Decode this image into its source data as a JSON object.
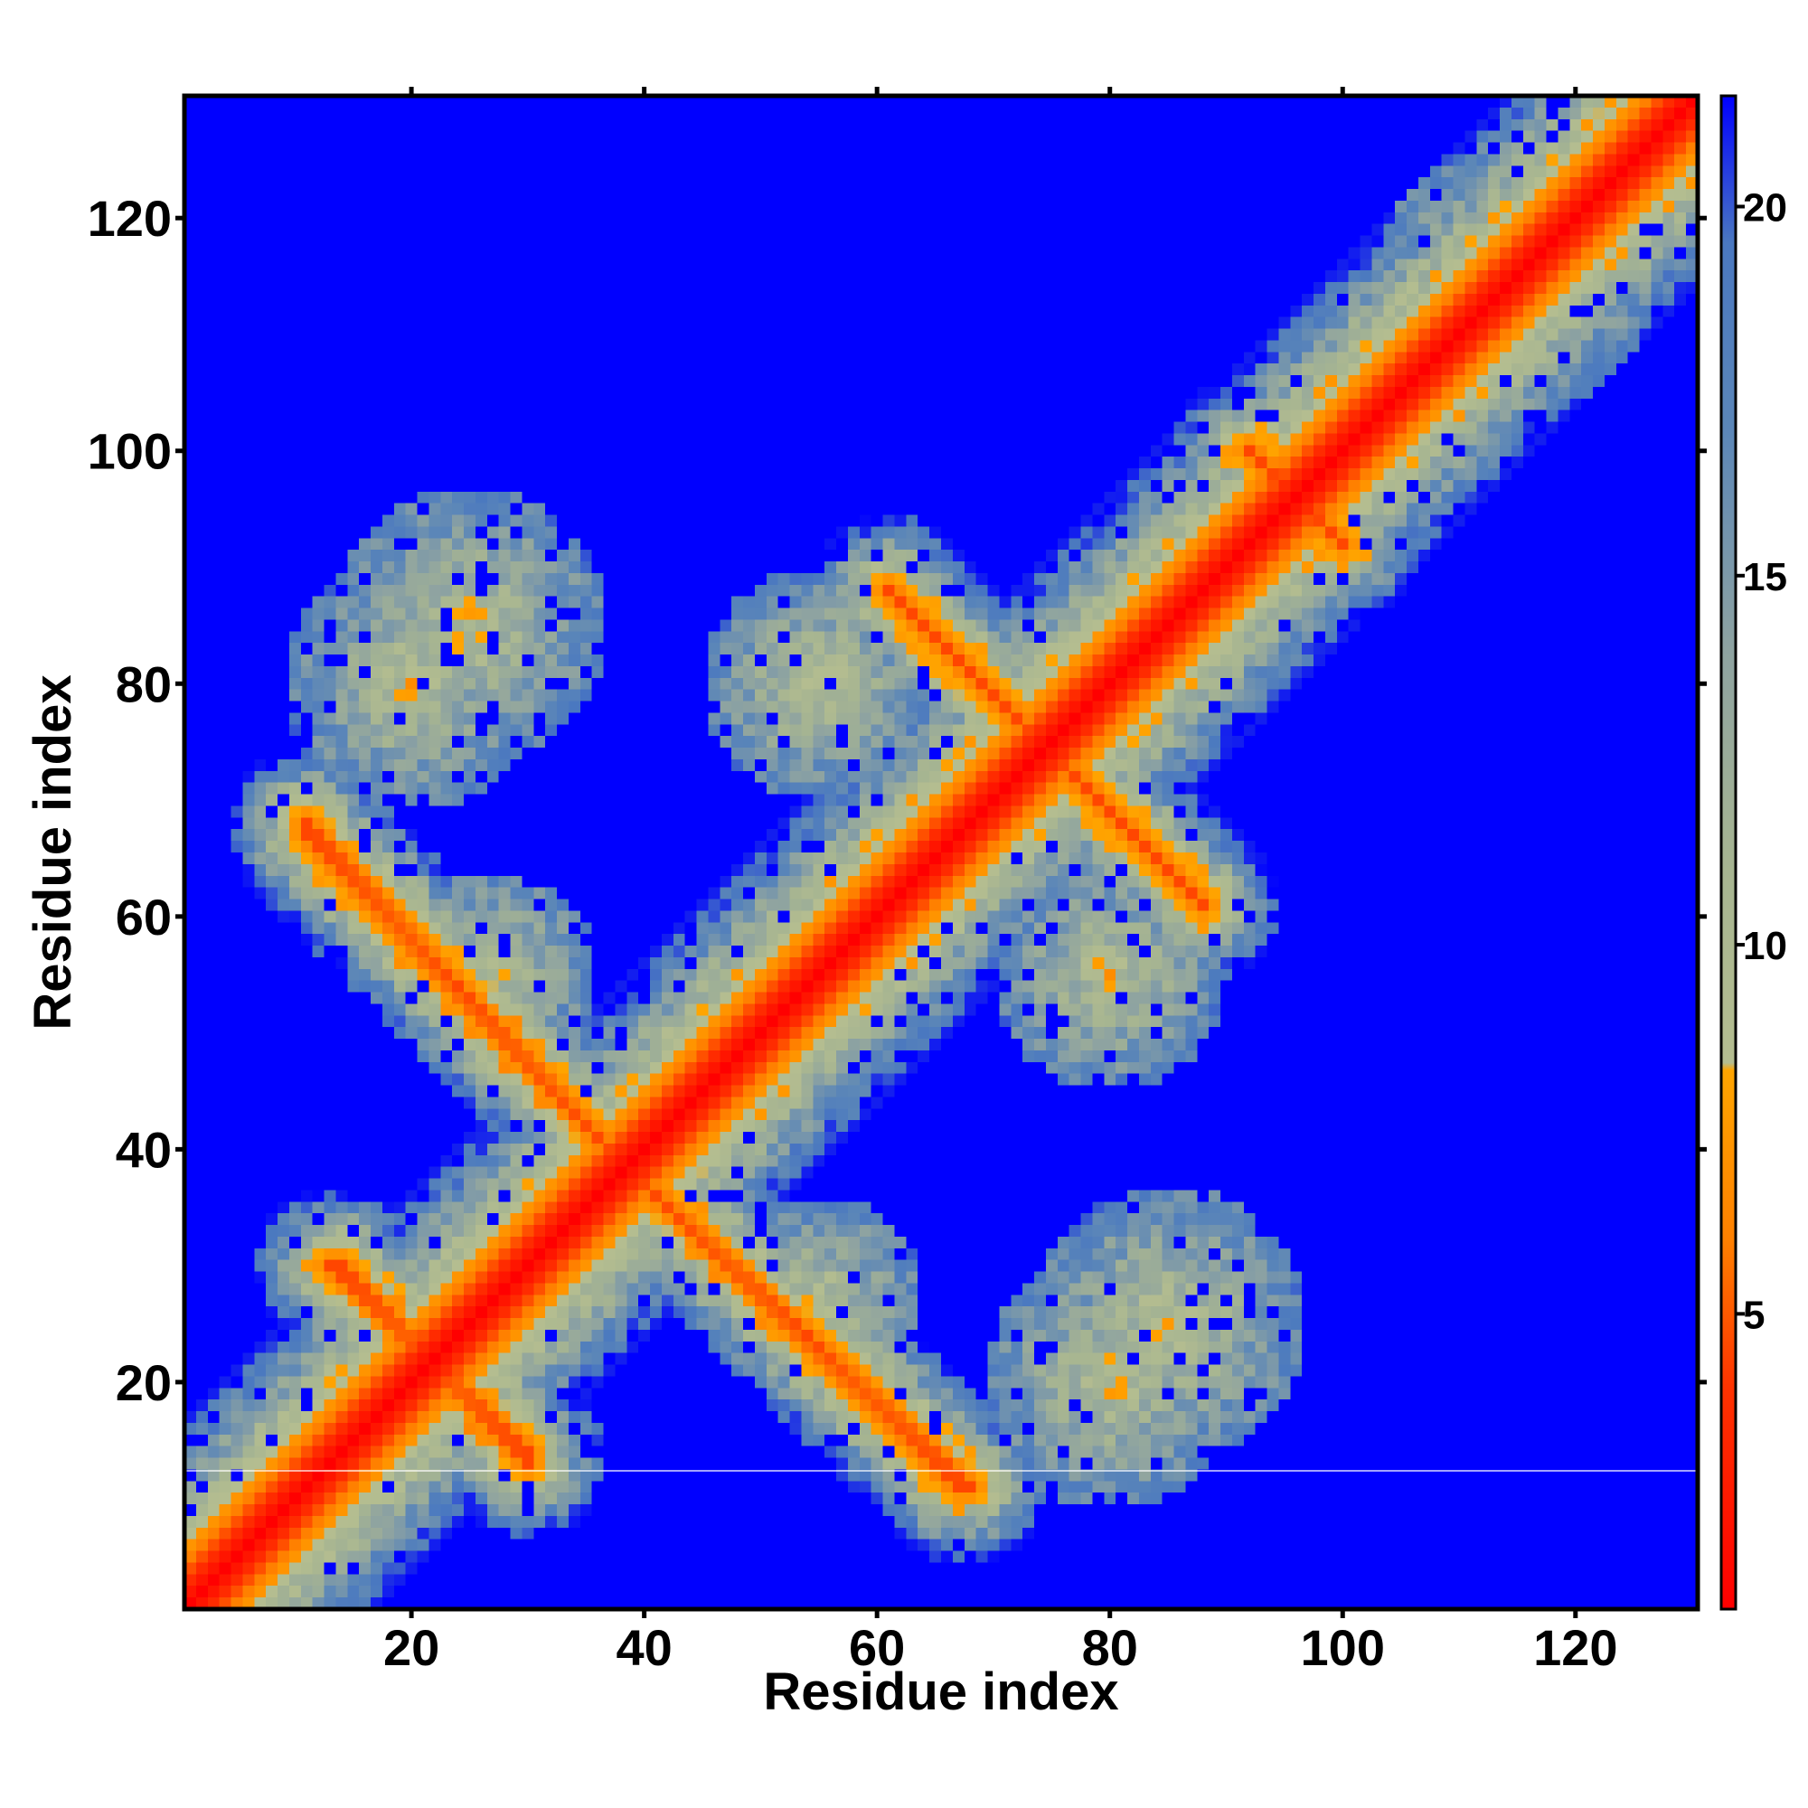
{
  "chart_data": {
    "type": "heatmap",
    "title": "",
    "xlabel": "Residue index",
    "ylabel": "Residue index",
    "xlim": [
      0.5,
      130.5
    ],
    "ylim": [
      0.5,
      130.5
    ],
    "n_residues": 130,
    "x_ticks": [
      20,
      40,
      60,
      80,
      100,
      120
    ],
    "y_ticks": [
      20,
      40,
      60,
      80,
      100,
      120
    ],
    "x_tick_labels": [
      "20",
      "40",
      "60",
      "80",
      "100",
      "120"
    ],
    "y_tick_labels": [
      "20",
      "40",
      "60",
      "80",
      "100",
      "120"
    ],
    "colorbar": {
      "range": [
        1,
        21.5
      ],
      "ticks": [
        5,
        10,
        15,
        20
      ],
      "tick_labels": [
        "5",
        "10",
        "15",
        "20"
      ],
      "colors": [
        {
          "stop": 1,
          "color": "#ff0000"
        },
        {
          "stop": 4,
          "color": "#ff3300"
        },
        {
          "stop": 6,
          "color": "#ff8000"
        },
        {
          "stop": 8.3,
          "color": "#ffa500"
        },
        {
          "stop": 8.4,
          "color": "#b4bd90"
        },
        {
          "stop": 11,
          "color": "#a7b591"
        },
        {
          "stop": 14,
          "color": "#8ea3a1"
        },
        {
          "stop": 17,
          "color": "#5b86b8"
        },
        {
          "stop": 19.5,
          "color": "#4a78c0"
        },
        {
          "stop": 21.5,
          "color": "#0000ff"
        }
      ],
      "background_color": "#0000ff"
    },
    "description_of_values": "distance map: red/orange along diagonal and contact stripes, blue = far",
    "contact_features": [
      {
        "kind": "diagonal",
        "from": [
          1,
          1
        ],
        "to": [
          130,
          130
        ]
      },
      {
        "kind": "stripe",
        "from": [
          11,
          68
        ],
        "to": [
          37,
          40
        ]
      },
      {
        "kind": "stripe",
        "from": [
          40,
          37
        ],
        "to": [
          67,
          11
        ]
      },
      {
        "kind": "stripe",
        "from": [
          14,
          30
        ],
        "to": [
          30,
          13
        ]
      },
      {
        "kind": "stripe",
        "from": [
          61,
          88
        ],
        "to": [
          75,
          74
        ]
      },
      {
        "kind": "stripe",
        "from": [
          74,
          75
        ],
        "to": [
          88,
          61
        ]
      },
      {
        "kind": "stripe",
        "from": [
          92,
          100
        ],
        "to": [
          100,
          92
        ]
      },
      {
        "kind": "blob",
        "center": [
          20,
          80
        ],
        "radius": 11
      },
      {
        "kind": "blob",
        "center": [
          27,
          55
        ],
        "radius": 9
      },
      {
        "kind": "blob",
        "center": [
          55,
          27
        ],
        "radius": 9
      },
      {
        "kind": "blob",
        "center": [
          80,
          20
        ],
        "radius": 11
      },
      {
        "kind": "blob",
        "center": [
          55,
          80
        ],
        "radius": 10
      },
      {
        "kind": "blob",
        "center": [
          80,
          55
        ],
        "radius": 10
      },
      {
        "kind": "blob",
        "center": [
          60,
          58
        ],
        "radius": 8
      },
      {
        "kind": "blob",
        "center": [
          85,
          25
        ],
        "radius": 12
      },
      {
        "kind": "blob",
        "center": [
          95,
          95
        ],
        "radius": 10
      },
      {
        "kind": "blob",
        "center": [
          115,
          115
        ],
        "radius": 12
      }
    ]
  }
}
